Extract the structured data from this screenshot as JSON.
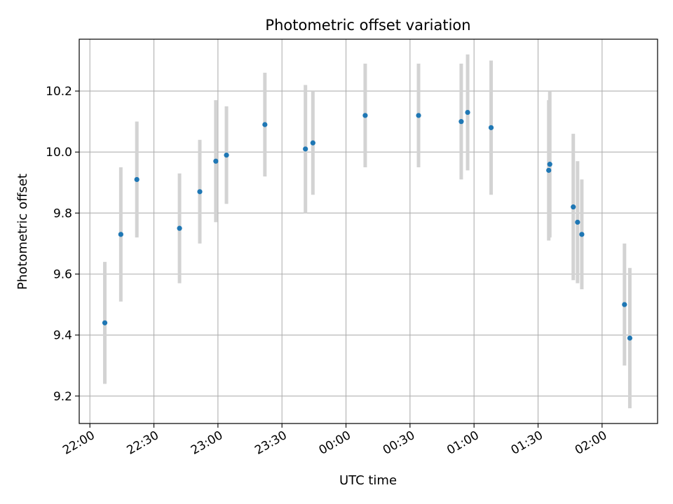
{
  "chart_data": {
    "type": "scatter",
    "title": "Photometric offset variation",
    "xlabel": "UTC time",
    "ylabel": "Photometric offset",
    "grid": true,
    "x_tick_labels": [
      "22:00",
      "22:30",
      "23:00",
      "23:30",
      "00:00",
      "00:30",
      "01:00",
      "01:30",
      "02:00"
    ],
    "x_tick_times": [
      "2000-01-01T22:00",
      "2000-01-01T22:30",
      "2000-01-01T23:00",
      "2000-01-01T23:30",
      "2000-01-02T00:00",
      "2000-01-02T00:30",
      "2000-01-02T01:00",
      "2000-01-02T01:30",
      "2000-01-02T02:00"
    ],
    "xlim": [
      "2000-01-01T21:55",
      "2000-01-02T02:26"
    ],
    "ylim": [
      9.11,
      10.37
    ],
    "y_ticks": [
      9.2,
      9.4,
      9.6,
      9.8,
      10.0,
      10.2
    ],
    "y_tick_labels": [
      "9.2",
      "9.4",
      "9.6",
      "9.8",
      "10.0",
      "10.2"
    ],
    "point_color": "#1f77b4",
    "errorbar_color": "#d3d3d3",
    "points": [
      {
        "t": "2000-01-01T22:07:00",
        "y": 9.44,
        "err": 0.2
      },
      {
        "t": "2000-01-01T22:14:30",
        "y": 9.73,
        "err": 0.22
      },
      {
        "t": "2000-01-01T22:22:00",
        "y": 9.91,
        "err": 0.19
      },
      {
        "t": "2000-01-01T22:42:00",
        "y": 9.75,
        "err": 0.18
      },
      {
        "t": "2000-01-01T22:51:30",
        "y": 9.87,
        "err": 0.17
      },
      {
        "t": "2000-01-01T22:59:00",
        "y": 9.97,
        "err": 0.2
      },
      {
        "t": "2000-01-01T23:04:00",
        "y": 9.99,
        "err": 0.16
      },
      {
        "t": "2000-01-01T23:22:00",
        "y": 10.09,
        "err": 0.17
      },
      {
        "t": "2000-01-01T23:41:00",
        "y": 10.01,
        "err": 0.21
      },
      {
        "t": "2000-01-01T23:44:30",
        "y": 10.03,
        "err": 0.17
      },
      {
        "t": "2000-01-02T00:09:00",
        "y": 10.12,
        "err": 0.17
      },
      {
        "t": "2000-01-02T00:34:00",
        "y": 10.12,
        "err": 0.17
      },
      {
        "t": "2000-01-02T00:54:00",
        "y": 10.1,
        "err": 0.19
      },
      {
        "t": "2000-01-02T00:57:00",
        "y": 10.13,
        "err": 0.19
      },
      {
        "t": "2000-01-02T01:08:00",
        "y": 10.08,
        "err": 0.22
      },
      {
        "t": "2000-01-02T01:35:00",
        "y": 9.94,
        "err": 0.23
      },
      {
        "t": "2000-01-02T01:35:30",
        "y": 9.96,
        "err": 0.24
      },
      {
        "t": "2000-01-02T01:46:30",
        "y": 9.82,
        "err": 0.24
      },
      {
        "t": "2000-01-02T01:48:30",
        "y": 9.77,
        "err": 0.2
      },
      {
        "t": "2000-01-02T01:50:30",
        "y": 9.73,
        "err": 0.18
      },
      {
        "t": "2000-01-02T02:10:30",
        "y": 9.5,
        "err": 0.2
      },
      {
        "t": "2000-01-02T02:13:00",
        "y": 9.39,
        "err": 0.23
      }
    ]
  }
}
